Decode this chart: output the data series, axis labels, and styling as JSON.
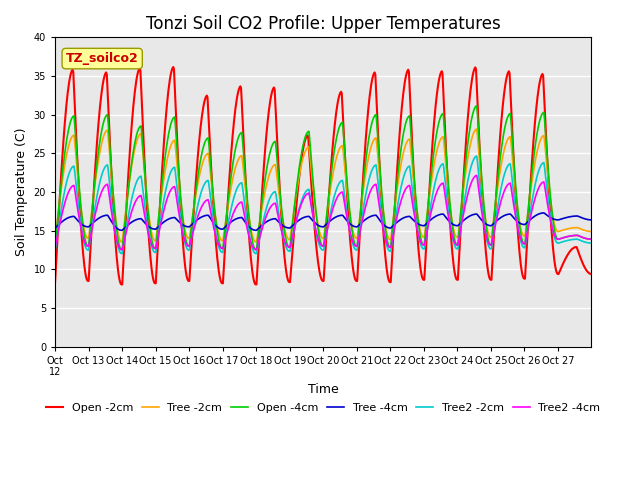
{
  "title": "Tonzi Soil CO2 Profile: Upper Temperatures",
  "xlabel": "Time",
  "ylabel": "Soil Temperature (C)",
  "ylim": [
    0,
    40
  ],
  "yticks": [
    0,
    5,
    10,
    15,
    20,
    25,
    30,
    35,
    40
  ],
  "x_labels": [
    "Oct 12",
    "Oct 13",
    "Oct 14",
    "Oct 15",
    "Oct 16",
    "Oct 17",
    "Oct 18",
    "Oct 19",
    "Oct 20",
    "Oct 21",
    "Oct 22",
    "Oct 23",
    "Oct 24",
    "Oct 25",
    "Oct 26",
    "Oct 27"
  ],
  "annotation_text": "TZ_soilco2",
  "background_color": "#E8E8E8",
  "grid_color": "#FFFFFF",
  "title_fontsize": 12,
  "label_fontsize": 9,
  "tick_fontsize": 8,
  "n_days": 16,
  "points_per_day": 48,
  "open2_peaks": [
    37,
    37,
    36.5,
    37,
    34,
    34.5,
    34,
    28.5,
    34.5,
    37,
    37,
    37.5,
    38,
    37.5,
    37.5,
    13
  ],
  "open2_mins": [
    9.5,
    10.0,
    8.5,
    9.0,
    10.0,
    9.0,
    8.5,
    9.5,
    10.0,
    10.0,
    9.5,
    10.5,
    10.5,
    10.5,
    11.0,
    13,
    13
  ],
  "series_order": [
    "Open -2cm",
    "Tree -2cm",
    "Open -4cm",
    "Tree -4cm",
    "Tree2 -2cm",
    "Tree2 -4cm"
  ],
  "series_params": {
    "Open -2cm": {
      "color": "#FF0000",
      "lw": 1.5,
      "min_b": 9.5,
      "pk_offsets": [
        27.5,
        27,
        28,
        28,
        24,
        25.5,
        25.5,
        19,
        24.5,
        27,
        27.5,
        27,
        27.5,
        27,
        26.5,
        3.5
      ]
    },
    "Tree -2cm": {
      "color": "#FFA500",
      "lw": 1.2,
      "min_b": 15.0,
      "pk_offsets": [
        13.5,
        14,
        14,
        13,
        11,
        11,
        10,
        12,
        12,
        13,
        13,
        13,
        14,
        13,
        13,
        0
      ]
    },
    "Open -4cm": {
      "color": "#00CC00",
      "lw": 1.2,
      "min_b": 14.0,
      "pk_offsets": [
        17,
        17,
        16,
        17,
        14,
        15,
        14,
        15,
        16,
        17,
        17,
        17,
        18,
        17,
        17,
        0
      ]
    },
    "Tree -4cm": {
      "color": "#0000CC",
      "lw": 1.2,
      "min_b": 16.5,
      "pk_offsets": [
        1.5,
        1.5,
        1.5,
        1.5,
        1.5,
        1.5,
        1.5,
        1.5,
        1.5,
        1.5,
        1.5,
        1.5,
        1.5,
        1.5,
        1.5,
        0
      ]
    },
    "Tree2 -2cm": {
      "color": "#00CCCC",
      "lw": 1.2,
      "min_b": 13.5,
      "pk_offsets": [
        11,
        11,
        10,
        11,
        9,
        9,
        8,
        8,
        9,
        11,
        11,
        11,
        12,
        11,
        11,
        0
      ]
    },
    "Tree2 -4cm": {
      "color": "#FF00FF",
      "lw": 1.2,
      "min_b": 14.0,
      "pk_offsets": [
        8,
        8,
        7,
        8,
        6,
        6,
        6,
        7,
        7,
        8,
        8,
        8,
        9,
        8,
        8,
        0
      ]
    }
  },
  "legend_entries": [
    {
      "label": "Open -2cm",
      "color": "#FF0000",
      "lw": 1.5
    },
    {
      "label": "Tree -2cm",
      "color": "#FFA500",
      "lw": 1.2
    },
    {
      "label": "Open -4cm",
      "color": "#00CC00",
      "lw": 1.2
    },
    {
      "label": "Tree -4cm",
      "color": "#0000CC",
      "lw": 1.2
    },
    {
      "label": "Tree2 -2cm",
      "color": "#00CCCC",
      "lw": 1.2
    },
    {
      "label": "Tree2 -4cm",
      "color": "#FF00FF",
      "lw": 1.2
    }
  ]
}
